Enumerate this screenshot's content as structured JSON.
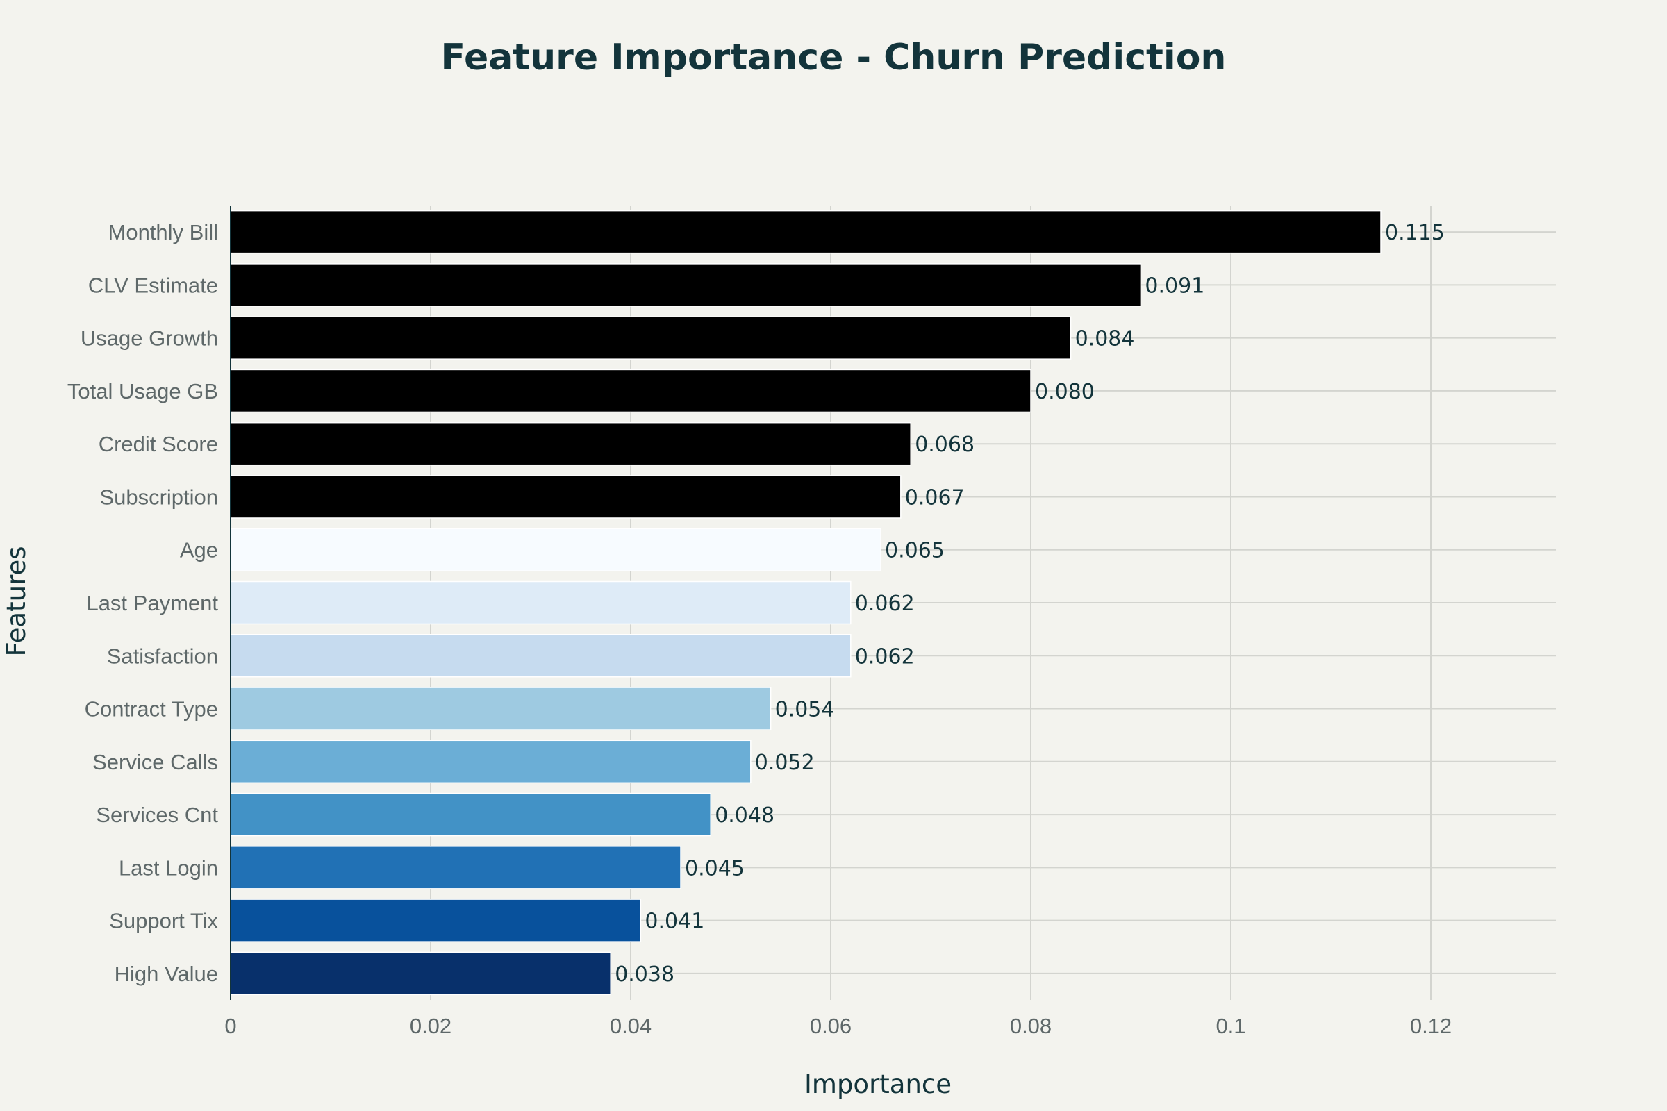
{
  "chart_data": {
    "type": "bar",
    "orientation": "horizontal",
    "title": "Feature Importance - Churn Prediction",
    "xlabel": "Importance",
    "ylabel": "Features",
    "xlim": [
      0,
      0.1325
    ],
    "xticks": [
      0,
      0.02,
      0.04,
      0.06,
      0.08,
      0.1,
      0.12
    ],
    "xtick_labels": [
      "0",
      "0.02",
      "0.04",
      "0.06",
      "0.08",
      "0.1",
      "0.12"
    ],
    "grid": true,
    "categories": [
      "Monthly Bill",
      "CLV Estimate",
      "Usage Growth",
      "Total Usage GB",
      "Credit Score",
      "Subscription",
      "Age",
      "Last Payment",
      "Satisfaction",
      "Contract Type",
      "Service Calls",
      "Services Cnt",
      "Last Login",
      "Support Tix",
      "High Value"
    ],
    "values": [
      0.115,
      0.091,
      0.084,
      0.08,
      0.068,
      0.067,
      0.065,
      0.062,
      0.062,
      0.054,
      0.052,
      0.048,
      0.045,
      0.041,
      0.038
    ],
    "data_labels": [
      "0.115",
      "0.091",
      "0.084",
      "0.080",
      "0.068",
      "0.067",
      "0.065",
      "0.062",
      "0.062",
      "0.054",
      "0.052",
      "0.048",
      "0.045",
      "0.041",
      "0.038"
    ],
    "colors": [
      "#000000",
      "#000000",
      "#000000",
      "#000000",
      "#000000",
      "#000000",
      "#f7fbff",
      "#deebf7",
      "#c6dbef",
      "#9ecae1",
      "#6baed6",
      "#4292c6",
      "#2171b5",
      "#08519c",
      "#08306b"
    ]
  }
}
